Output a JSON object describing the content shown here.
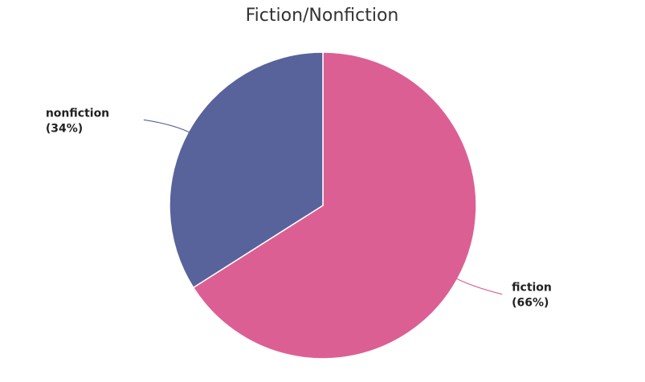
{
  "chart_data": {
    "type": "pie",
    "title": "Fiction/Nonfiction",
    "slices": [
      {
        "name": "fiction",
        "value": 66,
        "label": "fiction",
        "pct_label": "(66%)",
        "color": "#dc5f93"
      },
      {
        "name": "nonfiction",
        "value": 34,
        "label": "nonfiction",
        "pct_label": "(34%)",
        "color": "#58639b"
      }
    ],
    "legend": "none",
    "start": "top",
    "direction": "clockwise"
  }
}
